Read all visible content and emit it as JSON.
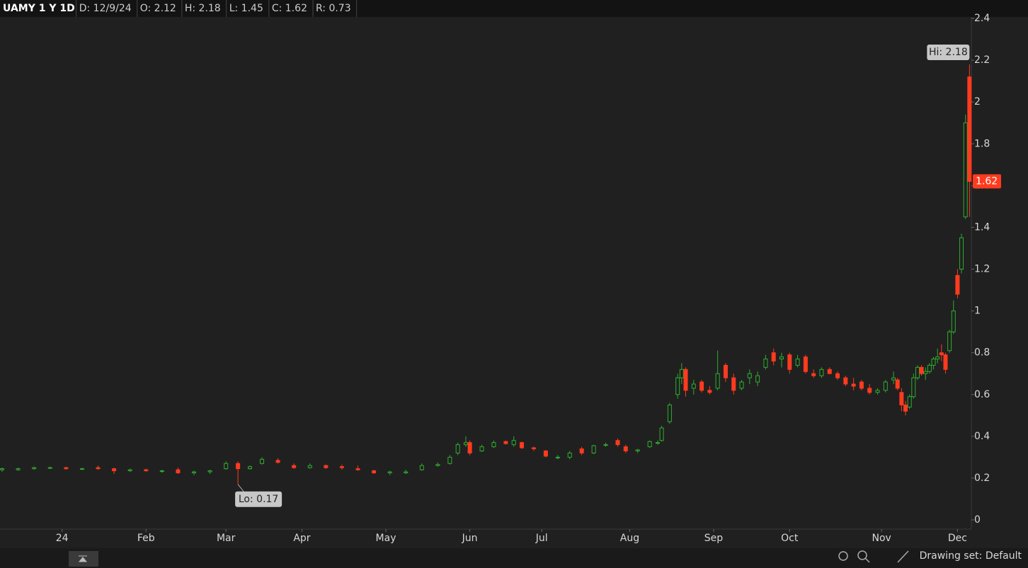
{
  "header": {
    "symbol": "UAMY 1 Y 1D",
    "items": [
      "D: 12/9/24",
      "O: 2.12",
      "H: 2.18",
      "L: 1.45",
      "C: 1.62",
      "R: 0.73"
    ]
  },
  "footer": {
    "drawing_set": "Drawing set: Default"
  },
  "chart_data": {
    "type": "candlestick",
    "up_color": "#2fae2f",
    "down_color": "#ff3b1f",
    "annotations": {
      "high": "Hi: 2.18",
      "low": "Lo: 0.17"
    },
    "xlim": [
      0,
      243
    ],
    "xticks": [
      {
        "value": 15,
        "label": "24"
      },
      {
        "value": 36,
        "label": "Feb"
      },
      {
        "value": 56,
        "label": "Mar"
      },
      {
        "value": 75,
        "label": "Apr"
      },
      {
        "value": 96,
        "label": "May"
      },
      {
        "value": 117,
        "label": "Jun"
      },
      {
        "value": 135,
        "label": "Jul"
      },
      {
        "value": 157,
        "label": "Aug"
      },
      {
        "value": 178,
        "label": "Sep"
      },
      {
        "value": 197,
        "label": "Oct"
      },
      {
        "value": 220,
        "label": "Nov"
      },
      {
        "value": 239,
        "label": "Dec"
      }
    ],
    "ylim": [
      0,
      2.4
    ],
    "yticks": [
      0,
      0.2,
      0.4,
      0.6,
      0.8,
      1,
      1.2,
      1.4,
      1.6,
      1.8,
      2,
      2.2,
      2.4
    ],
    "x": [
      0,
      4,
      8,
      12,
      16,
      20,
      24,
      28,
      32,
      36,
      40,
      44,
      48,
      52,
      56,
      59,
      62,
      65,
      69,
      73,
      77,
      81,
      85,
      89,
      93,
      97,
      101,
      105,
      109,
      112,
      114,
      116,
      117,
      120,
      123,
      126,
      128,
      130,
      133,
      136,
      139,
      142,
      145,
      148,
      151,
      154,
      156,
      159,
      162,
      164,
      165,
      167,
      169,
      170,
      171,
      173,
      175,
      177,
      179,
      181,
      183,
      185,
      187,
      189,
      191,
      193,
      195,
      197,
      199,
      201,
      203,
      205,
      207,
      209,
      211,
      213,
      215,
      217,
      219,
      221,
      223,
      224,
      225,
      226,
      227,
      228,
      229,
      230,
      231,
      232,
      233,
      234,
      235,
      236,
      237,
      238,
      239,
      240,
      241,
      242
    ],
    "ohlc": [
      [
        0.24,
        0.25,
        0.23,
        0.245
      ],
      [
        0.24,
        0.25,
        0.235,
        0.245
      ],
      [
        0.245,
        0.255,
        0.24,
        0.25
      ],
      [
        0.25,
        0.255,
        0.245,
        0.25
      ],
      [
        0.25,
        0.255,
        0.24,
        0.245
      ],
      [
        0.245,
        0.25,
        0.24,
        0.245
      ],
      [
        0.25,
        0.26,
        0.24,
        0.245
      ],
      [
        0.245,
        0.25,
        0.22,
        0.235
      ],
      [
        0.235,
        0.245,
        0.23,
        0.24
      ],
      [
        0.24,
        0.245,
        0.23,
        0.235
      ],
      [
        0.235,
        0.24,
        0.225,
        0.235
      ],
      [
        0.24,
        0.25,
        0.22,
        0.225
      ],
      [
        0.225,
        0.235,
        0.215,
        0.23
      ],
      [
        0.23,
        0.24,
        0.22,
        0.235
      ],
      [
        0.245,
        0.28,
        0.24,
        0.27
      ],
      [
        0.27,
        0.28,
        0.17,
        0.245
      ],
      [
        0.245,
        0.26,
        0.24,
        0.255
      ],
      [
        0.27,
        0.3,
        0.265,
        0.29
      ],
      [
        0.285,
        0.295,
        0.27,
        0.275
      ],
      [
        0.26,
        0.27,
        0.245,
        0.25
      ],
      [
        0.25,
        0.27,
        0.245,
        0.26
      ],
      [
        0.26,
        0.265,
        0.245,
        0.25
      ],
      [
        0.255,
        0.265,
        0.24,
        0.25
      ],
      [
        0.245,
        0.26,
        0.235,
        0.24
      ],
      [
        0.235,
        0.24,
        0.22,
        0.225
      ],
      [
        0.225,
        0.235,
        0.215,
        0.23
      ],
      [
        0.225,
        0.24,
        0.22,
        0.23
      ],
      [
        0.24,
        0.27,
        0.235,
        0.26
      ],
      [
        0.26,
        0.275,
        0.255,
        0.265
      ],
      [
        0.27,
        0.31,
        0.265,
        0.3
      ],
      [
        0.32,
        0.37,
        0.31,
        0.36
      ],
      [
        0.36,
        0.4,
        0.35,
        0.37
      ],
      [
        0.37,
        0.38,
        0.31,
        0.32
      ],
      [
        0.33,
        0.36,
        0.325,
        0.35
      ],
      [
        0.35,
        0.38,
        0.345,
        0.37
      ],
      [
        0.375,
        0.38,
        0.36,
        0.365
      ],
      [
        0.36,
        0.4,
        0.35,
        0.38
      ],
      [
        0.37,
        0.375,
        0.34,
        0.345
      ],
      [
        0.345,
        0.35,
        0.33,
        0.34
      ],
      [
        0.33,
        0.335,
        0.3,
        0.305
      ],
      [
        0.3,
        0.31,
        0.29,
        0.3
      ],
      [
        0.3,
        0.33,
        0.29,
        0.32
      ],
      [
        0.34,
        0.35,
        0.31,
        0.32
      ],
      [
        0.32,
        0.36,
        0.315,
        0.355
      ],
      [
        0.36,
        0.37,
        0.35,
        0.36
      ],
      [
        0.38,
        0.39,
        0.35,
        0.36
      ],
      [
        0.35,
        0.36,
        0.32,
        0.33
      ],
      [
        0.33,
        0.34,
        0.32,
        0.335
      ],
      [
        0.35,
        0.38,
        0.345,
        0.375
      ],
      [
        0.37,
        0.38,
        0.36,
        0.37
      ],
      [
        0.38,
        0.45,
        0.375,
        0.44
      ],
      [
        0.47,
        0.56,
        0.46,
        0.55
      ],
      [
        0.6,
        0.7,
        0.58,
        0.68
      ],
      [
        0.68,
        0.75,
        0.65,
        0.72
      ],
      [
        0.72,
        0.73,
        0.59,
        0.62
      ],
      [
        0.63,
        0.67,
        0.6,
        0.65
      ],
      [
        0.66,
        0.67,
        0.61,
        0.62
      ],
      [
        0.62,
        0.64,
        0.6,
        0.61
      ],
      [
        0.63,
        0.81,
        0.62,
        0.7
      ],
      [
        0.74,
        0.75,
        0.66,
        0.68
      ],
      [
        0.68,
        0.7,
        0.6,
        0.62
      ],
      [
        0.63,
        0.67,
        0.62,
        0.66
      ],
      [
        0.68,
        0.72,
        0.65,
        0.7
      ],
      [
        0.66,
        0.71,
        0.64,
        0.69
      ],
      [
        0.73,
        0.79,
        0.72,
        0.77
      ],
      [
        0.8,
        0.82,
        0.74,
        0.76
      ],
      [
        0.77,
        0.8,
        0.73,
        0.78
      ],
      [
        0.79,
        0.8,
        0.7,
        0.72
      ],
      [
        0.74,
        0.79,
        0.73,
        0.77
      ],
      [
        0.78,
        0.79,
        0.7,
        0.71
      ],
      [
        0.7,
        0.72,
        0.68,
        0.69
      ],
      [
        0.69,
        0.73,
        0.68,
        0.72
      ],
      [
        0.72,
        0.73,
        0.7,
        0.7
      ],
      [
        0.7,
        0.71,
        0.67,
        0.68
      ],
      [
        0.68,
        0.69,
        0.64,
        0.65
      ],
      [
        0.65,
        0.68,
        0.62,
        0.64
      ],
      [
        0.66,
        0.67,
        0.62,
        0.63
      ],
      [
        0.63,
        0.65,
        0.6,
        0.61
      ],
      [
        0.61,
        0.63,
        0.6,
        0.62
      ],
      [
        0.62,
        0.67,
        0.61,
        0.66
      ],
      [
        0.67,
        0.71,
        0.65,
        0.68
      ],
      [
        0.67,
        0.68,
        0.62,
        0.63
      ],
      [
        0.61,
        0.63,
        0.52,
        0.55
      ],
      [
        0.55,
        0.57,
        0.5,
        0.52
      ],
      [
        0.54,
        0.6,
        0.53,
        0.59
      ],
      [
        0.59,
        0.7,
        0.58,
        0.68
      ],
      [
        0.68,
        0.74,
        0.67,
        0.73
      ],
      [
        0.73,
        0.74,
        0.69,
        0.7
      ],
      [
        0.7,
        0.73,
        0.67,
        0.71
      ],
      [
        0.71,
        0.75,
        0.7,
        0.74
      ],
      [
        0.74,
        0.78,
        0.72,
        0.77
      ],
      [
        0.77,
        0.82,
        0.75,
        0.78
      ],
      [
        0.8,
        0.84,
        0.76,
        0.79
      ],
      [
        0.79,
        0.8,
        0.7,
        0.72
      ],
      [
        0.81,
        0.91,
        0.8,
        0.9
      ],
      [
        0.9,
        1.05,
        0.89,
        1.0
      ],
      [
        1.17,
        1.2,
        1.06,
        1.08
      ],
      [
        1.2,
        1.37,
        1.18,
        1.35
      ],
      [
        1.45,
        1.94,
        1.44,
        1.9
      ],
      [
        2.12,
        2.18,
        1.45,
        1.62
      ]
    ]
  }
}
